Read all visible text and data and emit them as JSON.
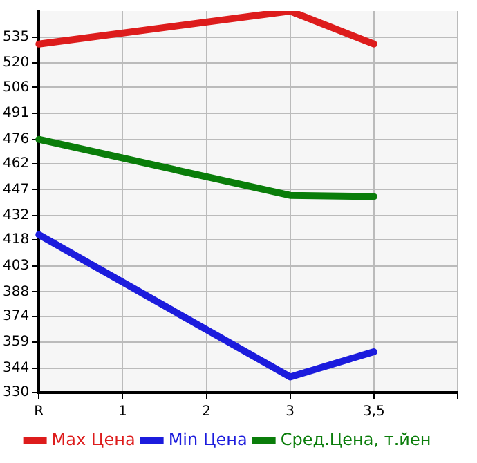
{
  "chart_data": {
    "type": "line",
    "categories": [
      "R",
      "1",
      "2",
      "3",
      "3,5",
      null
    ],
    "series": [
      {
        "name": "Max Цена",
        "color": "#dd1c1c",
        "values": [
          531,
          null,
          null,
          550,
          531,
          null
        ]
      },
      {
        "name": "Min Цена",
        "color": "#1c1cdd",
        "values": [
          421,
          null,
          null,
          339,
          353.5,
          null
        ]
      },
      {
        "name": "Сред.Цена, т.йен",
        "color": "#0a7d0a",
        "values": [
          476,
          null,
          null,
          443.7,
          443,
          null
        ]
      }
    ],
    "ylim": [
      330,
      550
    ],
    "yticks": [
      330,
      344,
      359,
      374,
      388,
      403,
      418,
      432,
      447,
      462,
      476,
      491,
      506,
      520,
      535
    ],
    "grid": true,
    "legend": "bottom",
    "marker": "none",
    "line_style": "solid"
  }
}
